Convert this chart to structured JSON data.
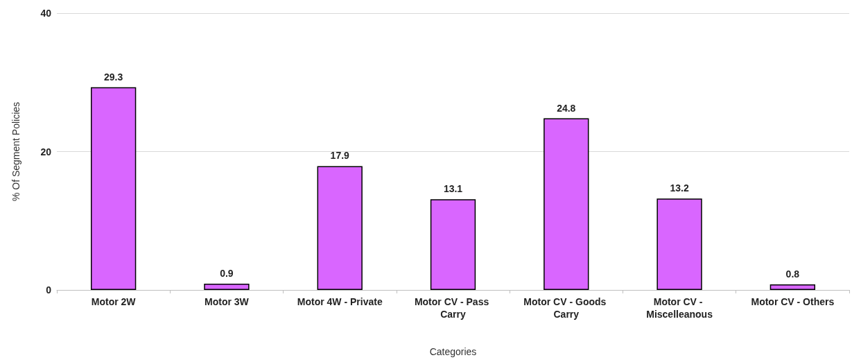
{
  "chart_data": {
    "type": "bar",
    "xlabel": "Categories",
    "ylabel": "% Of Segment Policies",
    "categories": [
      "Motor 2W",
      "Motor 3W",
      "Motor 4W - Private",
      "Motor CV - Pass Carry",
      "Motor CV - Goods Carry",
      "Motor CV - Miscelleanous",
      "Motor CV - Others"
    ],
    "values": [
      29.3,
      0.9,
      17.9,
      13.1,
      24.8,
      13.2,
      0.8
    ],
    "color": "#d966ff",
    "ylim": [
      0,
      40
    ],
    "yticks": [
      0,
      20,
      40
    ],
    "grid": "y",
    "data_labels": true
  }
}
